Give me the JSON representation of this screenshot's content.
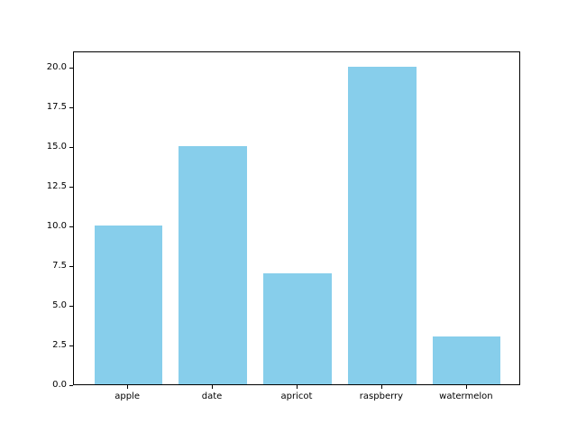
{
  "chart_data": {
    "type": "bar",
    "categories": [
      "apple",
      "date",
      "apricot",
      "raspberry",
      "watermelon"
    ],
    "values": [
      10,
      15,
      7,
      20,
      3
    ],
    "title": "",
    "xlabel": "",
    "ylabel": "",
    "ylim": [
      0,
      21
    ],
    "yticks": [
      0.0,
      2.5,
      5.0,
      7.5,
      10.0,
      12.5,
      15.0,
      17.5,
      20.0
    ],
    "ytick_labels": [
      "0.0",
      "2.5",
      "5.0",
      "7.5",
      "10.0",
      "12.5",
      "15.0",
      "17.5",
      "20.0"
    ],
    "bar_color": "#87CEEB",
    "bar_width_fraction": 0.8,
    "grid": false,
    "legend_position": "none"
  },
  "colors": {
    "background": "#ffffff",
    "spine": "#000000",
    "tick_text": "#000000"
  }
}
